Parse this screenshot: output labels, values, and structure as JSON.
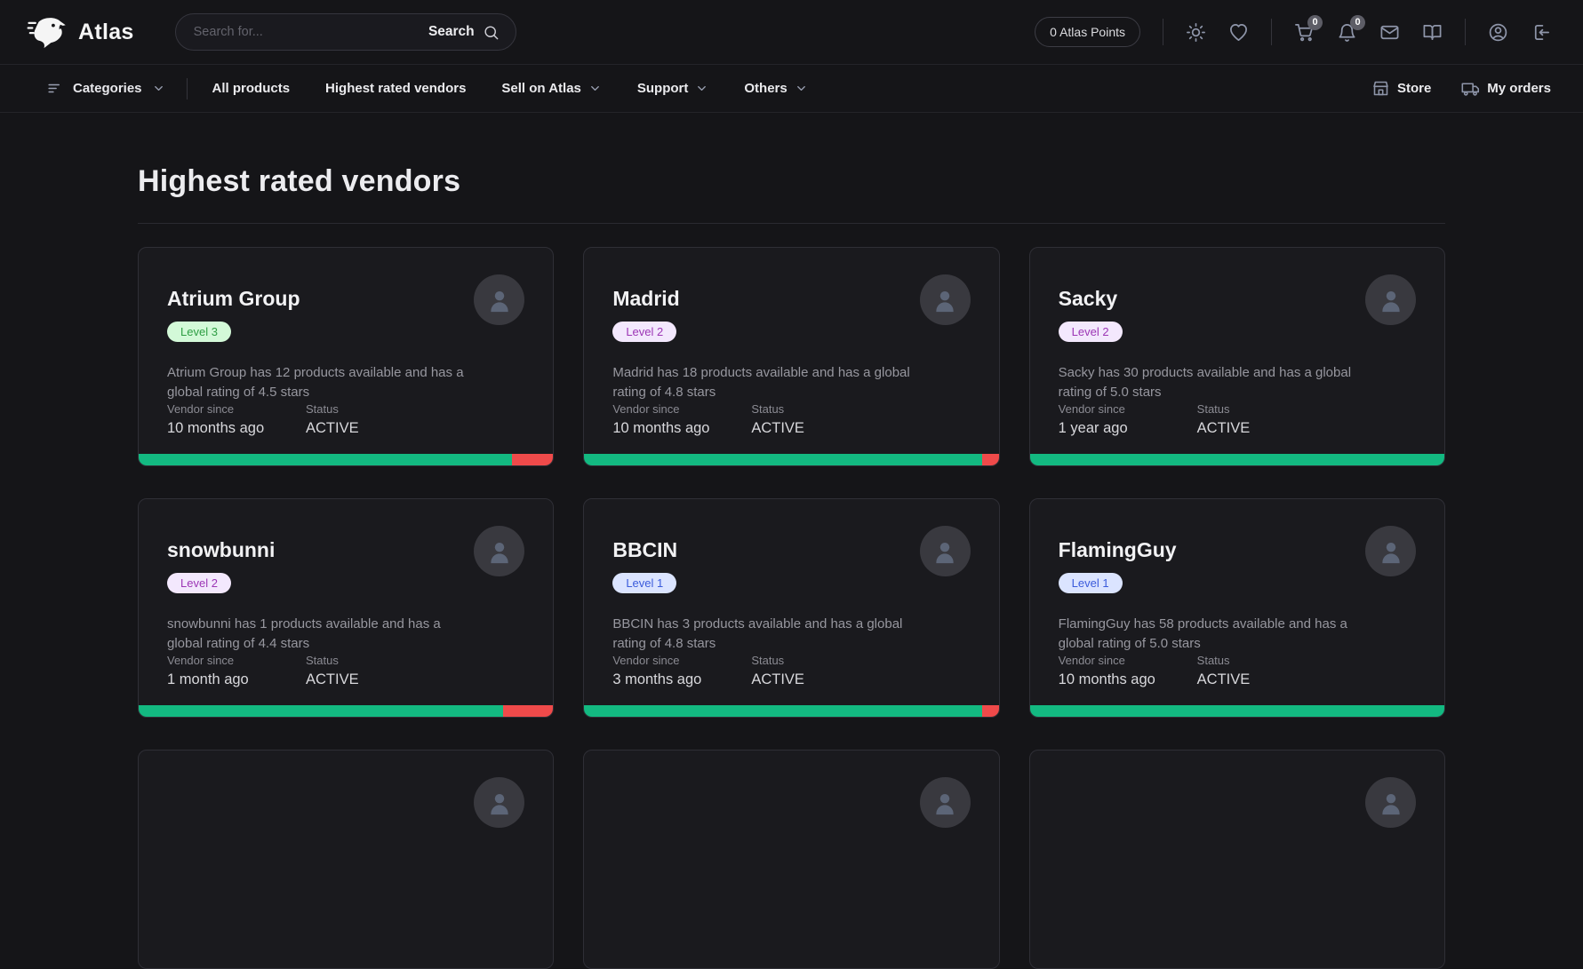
{
  "header": {
    "brand": "Atlas",
    "search": {
      "placeholder": "Search for...",
      "button_label": "Search"
    },
    "points_badge": "0 Atlas Points",
    "cart_count": "0",
    "notifications_count": "0"
  },
  "nav": {
    "categories_label": "Categories",
    "items": [
      {
        "label": "All products",
        "has_dropdown": false
      },
      {
        "label": "Highest rated vendors",
        "has_dropdown": false
      },
      {
        "label": "Sell on Atlas",
        "has_dropdown": true
      },
      {
        "label": "Support",
        "has_dropdown": true
      },
      {
        "label": "Others",
        "has_dropdown": true
      }
    ],
    "store_label": "Store",
    "my_orders_label": "My orders"
  },
  "main": {
    "title": "Highest rated vendors",
    "labels": {
      "vendor_since": "Vendor since",
      "status": "Status"
    },
    "vendors": [
      {
        "name": "Atrium Group",
        "level": "Level 3",
        "level_type": "green",
        "description": "Atrium Group has 12 products available and has a global rating of 4.5 stars",
        "vendor_since": "10 months ago",
        "status": "ACTIVE",
        "rating_percent": 90
      },
      {
        "name": "Madrid",
        "level": "Level 2",
        "level_type": "purple",
        "description": "Madrid has 18 products available and has a global rating of 4.8 stars",
        "vendor_since": "10 months ago",
        "status": "ACTIVE",
        "rating_percent": 96
      },
      {
        "name": "Sacky",
        "level": "Level 2",
        "level_type": "purple",
        "description": "Sacky has 30 products available and has a global rating of 5.0 stars",
        "vendor_since": "1 year ago",
        "status": "ACTIVE",
        "rating_percent": 100
      },
      {
        "name": "snowbunni",
        "level": "Level 2",
        "level_type": "purple",
        "description": "snowbunni has 1 products available and has a global rating of 4.4 stars",
        "vendor_since": "1 month ago",
        "status": "ACTIVE",
        "rating_percent": 88
      },
      {
        "name": "BBCIN",
        "level": "Level 1",
        "level_type": "blue",
        "description": "BBCIN has 3 products available and has a global rating of 4.8 stars",
        "vendor_since": "3 months ago",
        "status": "ACTIVE",
        "rating_percent": 96
      },
      {
        "name": "FlamingGuy",
        "level": "Level 1",
        "level_type": "blue",
        "description": "FlamingGuy has 58 products available and has a global rating of 5.0 stars",
        "vendor_since": "10 months ago",
        "status": "ACTIVE",
        "rating_percent": 100
      }
    ],
    "partial_cards": 3
  },
  "colors": {
    "background": "#151518",
    "card_background": "#1a1a1e",
    "accent_green": "#13b981",
    "accent_red": "#ef4a4a",
    "badge_green_bg": "#d3f9d8",
    "badge_green_text": "#2f9e44",
    "badge_purple_bg": "#f3e8fd",
    "badge_purple_text": "#9c36b5",
    "badge_blue_bg": "#dbe4ff",
    "badge_blue_text": "#3b5bdb",
    "icon_slate": "#8e95a9"
  }
}
